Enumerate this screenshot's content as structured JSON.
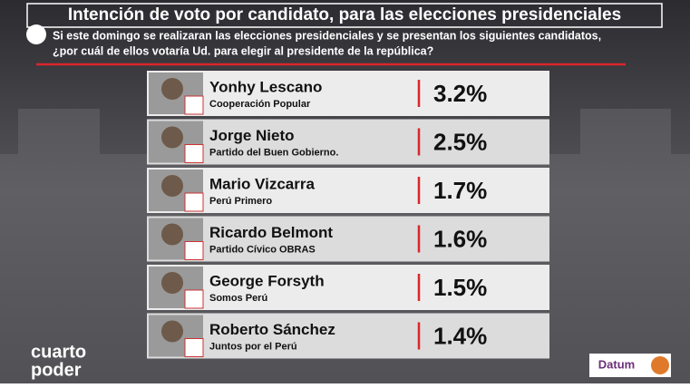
{
  "header": {
    "title": "Intención de voto por candidato, para las elecciones presidenciales",
    "question_line1": "Si este domingo se realizaran las elecciones presidenciales y se presentan los siguientes candidatos,",
    "question_line2": "¿por cuál de ellos votaría Ud. para elegir al presidente de la república?"
  },
  "candidates": [
    {
      "name": "Yonhy Lescano",
      "party": "Cooperación Popular",
      "percent": "3.2%"
    },
    {
      "name": "Jorge Nieto",
      "party": "Partido del Buen Gobierno.",
      "percent": "2.5%"
    },
    {
      "name": "Mario Vizcarra",
      "party": "Perú Primero",
      "percent": "1.7%"
    },
    {
      "name": "Ricardo Belmont",
      "party": "Partido Cívico OBRAS",
      "percent": "1.6%"
    },
    {
      "name": "George Forsyth",
      "party": "Somos Perú",
      "percent": "1.5%"
    },
    {
      "name": "Roberto Sánchez",
      "party": "Juntos por el  Perú",
      "percent": "1.4%"
    }
  ],
  "branding": {
    "channel_line1": "cuarto",
    "channel_line2": "poder",
    "pollster": "Datum"
  }
}
